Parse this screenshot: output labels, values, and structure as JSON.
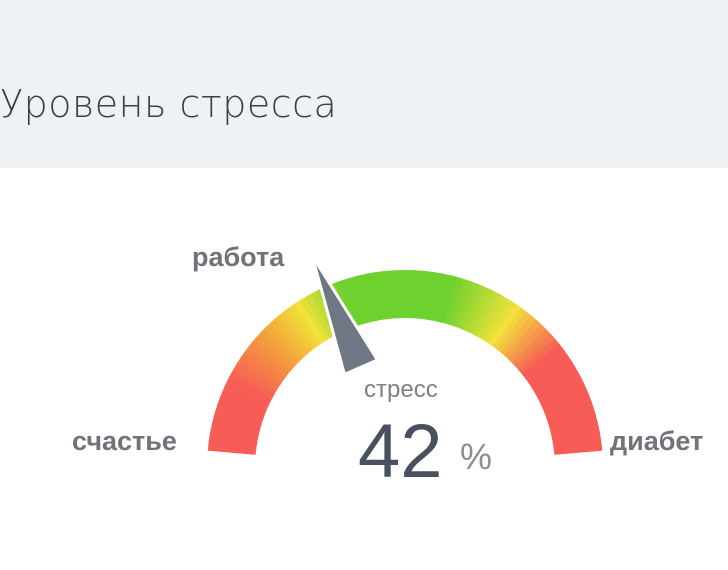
{
  "header": {
    "title": "Уровень стресса"
  },
  "gauge": {
    "value_percent": 42,
    "metric_label": "стресс",
    "value_text": "42",
    "unit": "%",
    "zone_labels": {
      "left": "счастье",
      "top": "работа",
      "right": "диабет"
    },
    "colors": {
      "red": "#f75c56",
      "orange": "#f3a03a",
      "yellow": "#f2e23a",
      "green": "#6fd12e",
      "needle": "#6f7784",
      "header_bg": "#eff2f5"
    }
  }
}
